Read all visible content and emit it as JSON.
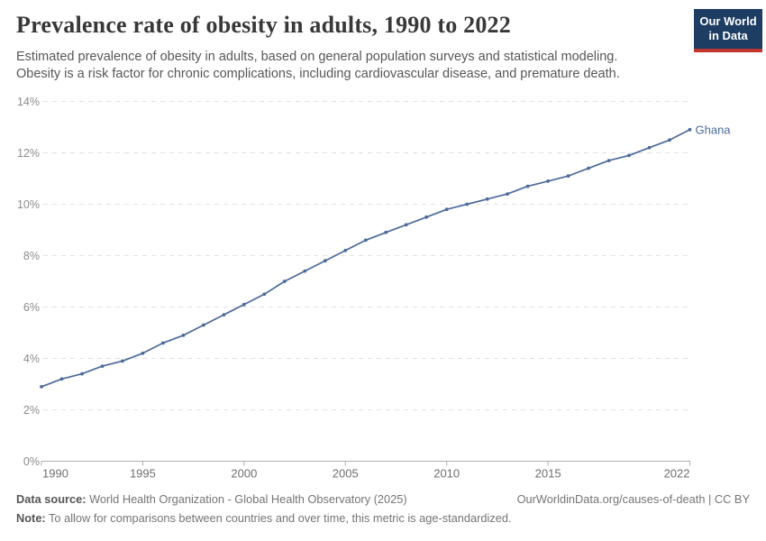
{
  "header": {
    "title": "Prevalence rate of obesity in adults, 1990 to 2022",
    "subtitle_line1": "Estimated prevalence of obesity in adults, based on general population surveys and statistical modeling.",
    "subtitle_line2": "Obesity is a risk factor for chronic complications, including cardiovascular disease, and premature death.",
    "logo": {
      "line1": "Our World",
      "line2": "in Data"
    }
  },
  "chart_data": {
    "type": "line",
    "title": "Prevalence rate of obesity in adults, 1990 to 2022",
    "years": [
      1990,
      1991,
      1992,
      1993,
      1994,
      1995,
      1996,
      1997,
      1998,
      1999,
      2000,
      2001,
      2002,
      2003,
      2004,
      2005,
      2006,
      2007,
      2008,
      2009,
      2010,
      2011,
      2012,
      2013,
      2014,
      2015,
      2016,
      2017,
      2018,
      2019,
      2020,
      2021,
      2022
    ],
    "series": [
      {
        "name": "Ghana",
        "color": "#4c6a9c",
        "values": [
          2.9,
          3.2,
          3.4,
          3.7,
          3.9,
          4.2,
          4.6,
          4.9,
          5.3,
          5.7,
          6.1,
          6.5,
          7.0,
          7.4,
          7.8,
          8.2,
          8.6,
          8.9,
          9.2,
          9.5,
          9.8,
          10.0,
          10.2,
          10.4,
          10.7,
          10.9,
          11.1,
          11.4,
          11.7,
          11.9,
          12.2,
          12.5,
          12.9
        ]
      }
    ],
    "end_label": "Ghana",
    "x_tick_values": [
      1990,
      1995,
      2000,
      2005,
      2010,
      2015,
      2022
    ],
    "x_tick_labels": [
      "1990",
      "1995",
      "2000",
      "2005",
      "2010",
      "2015",
      "2022"
    ],
    "y_tick_values": [
      0,
      2,
      4,
      6,
      8,
      10,
      12,
      14
    ],
    "y_tick_labels": [
      "0%",
      "2%",
      "4%",
      "6%",
      "8%",
      "10%",
      "12%",
      "14%"
    ],
    "xlim": [
      1990,
      2022
    ],
    "ylim": [
      0,
      14
    ],
    "grid": "horizontal-dashed",
    "legend_position": "end-of-line-label"
  },
  "footer": {
    "data_source_label": "Data source:",
    "data_source_value": " World Health Organization - Global Health Observatory (2025)",
    "link": "OurWorldinData.org/causes-of-death | CC BY",
    "note_label": "Note:",
    "note_value": " To allow for comparisons between countries and over time, this metric is age-standardized."
  },
  "colors": {
    "title_color": "#383838",
    "subtitle_color": "#575757",
    "accent_line": "#4c6a9c",
    "grid_color": "#e2e2e2",
    "axis_color": "#adadad",
    "tick_color": "#8c8c8c",
    "tick_color2": "#6e6e6e",
    "footer_color": "#757575",
    "logo_navy": "#1d3d63",
    "logo_red": "#c0372f"
  }
}
